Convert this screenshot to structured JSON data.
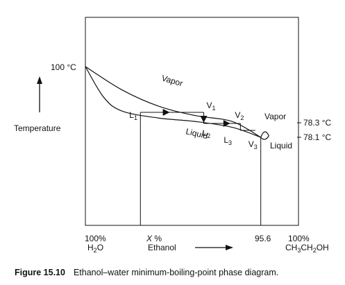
{
  "chart_data": {
    "type": "line",
    "title": "",
    "caption": {
      "number": "Figure 15.10",
      "text": "Ethanol–water minimum-boiling-point phase diagram."
    },
    "ylabel": "Temperature",
    "xlabel": "Ethanol",
    "x_unit": "%",
    "xlim": [
      0,
      100
    ],
    "y_tick_left": "100 °C",
    "y_ticks_right": [
      "78.3 °C",
      "78.1 °C"
    ],
    "x_tick_left": {
      "line1": "100%",
      "line2_main": "H",
      "line2_sub": "2",
      "line2_tail": "O"
    },
    "x_tick_mid": {
      "italic": "X",
      "rest": " %"
    },
    "x_tick_azeo": "95.6",
    "x_tick_right": {
      "line1": "100%",
      "line2_parts": [
        "CH",
        "3",
        "CH",
        "2",
        "OH"
      ]
    },
    "series": [
      {
        "name": "Vapor",
        "points": [
          [
            0,
            100
          ],
          [
            20,
            92.7
          ],
          [
            40,
            87.6
          ],
          [
            60,
            84.0
          ],
          [
            80,
            80.9
          ],
          [
            95.6,
            78.1
          ]
        ]
      },
      {
        "name": "Liquid",
        "points": [
          [
            0,
            100
          ],
          [
            10,
            90.4
          ],
          [
            20,
            86.1
          ],
          [
            40,
            82.7
          ],
          [
            60,
            80.9
          ],
          [
            80,
            79.4
          ],
          [
            95.6,
            78.1
          ]
        ]
      },
      {
        "name": "Vapor",
        "points": [
          [
            95.6,
            78.1
          ],
          [
            100,
            78.3
          ]
        ]
      },
      {
        "name": "Liquid",
        "points": [
          [
            95.6,
            78.1
          ],
          [
            100,
            78.3
          ]
        ]
      }
    ],
    "points": [
      {
        "label": "L",
        "sub": "1",
        "x": 30,
        "y": 85.7
      },
      {
        "label": "V",
        "sub": "1",
        "x": 64.5,
        "y": 85.7
      },
      {
        "label": "L",
        "sub": "2",
        "x": 64.5,
        "y": 79.9
      },
      {
        "label": "V",
        "sub": "2",
        "x": 84.5,
        "y": 79.9
      },
      {
        "label": "L",
        "sub": "3",
        "x": 84.5,
        "y": 79.0
      },
      {
        "label": "V",
        "sub": "3",
        "x": 92.6,
        "y": 79.0
      }
    ],
    "region_labels": [
      "Vapor",
      "Liquid",
      "Vapor",
      "Liquid"
    ],
    "azeotrope_x": 95.6,
    "grid": false
  }
}
